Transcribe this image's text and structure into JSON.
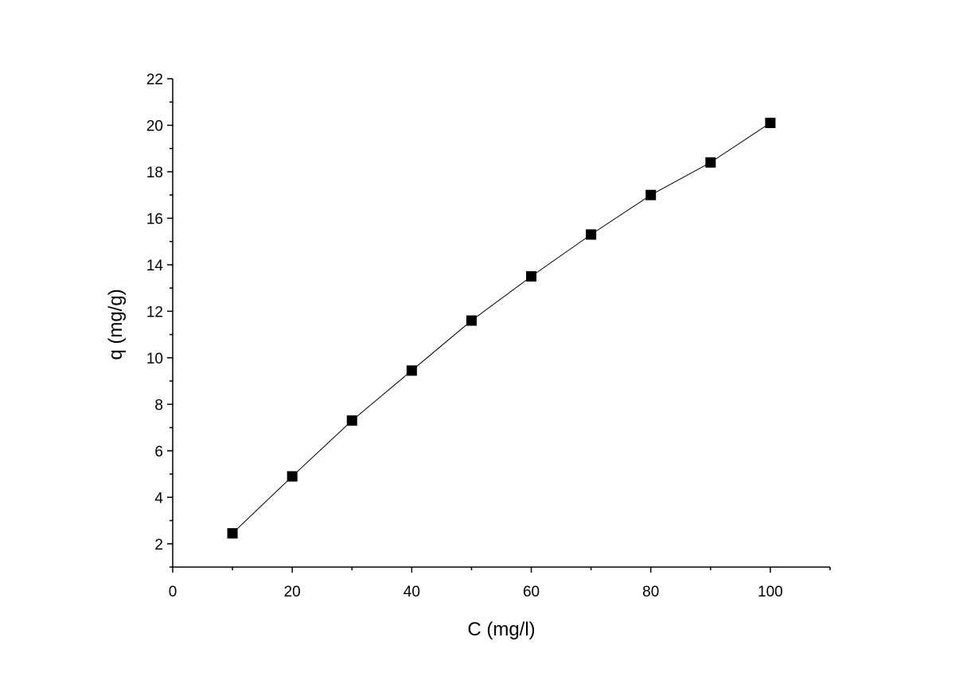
{
  "chart_data": {
    "type": "line",
    "xlabel": "C (mg/l)",
    "ylabel": "q (mg/g)",
    "xlim": [
      0,
      110
    ],
    "ylim": [
      1,
      22
    ],
    "x_ticks": [
      0,
      20,
      40,
      60,
      80,
      100
    ],
    "y_ticks": [
      2,
      4,
      6,
      8,
      10,
      12,
      14,
      16,
      18,
      20,
      22
    ],
    "grid": false,
    "legend": "none",
    "series": [
      {
        "marker": "square",
        "color": "#000000",
        "x": [
          10,
          20,
          30,
          40,
          50,
          60,
          70,
          80,
          90,
          100
        ],
        "y": [
          2.45,
          4.9,
          7.3,
          9.45,
          11.6,
          13.5,
          15.3,
          17.0,
          18.4,
          20.1
        ]
      }
    ]
  }
}
